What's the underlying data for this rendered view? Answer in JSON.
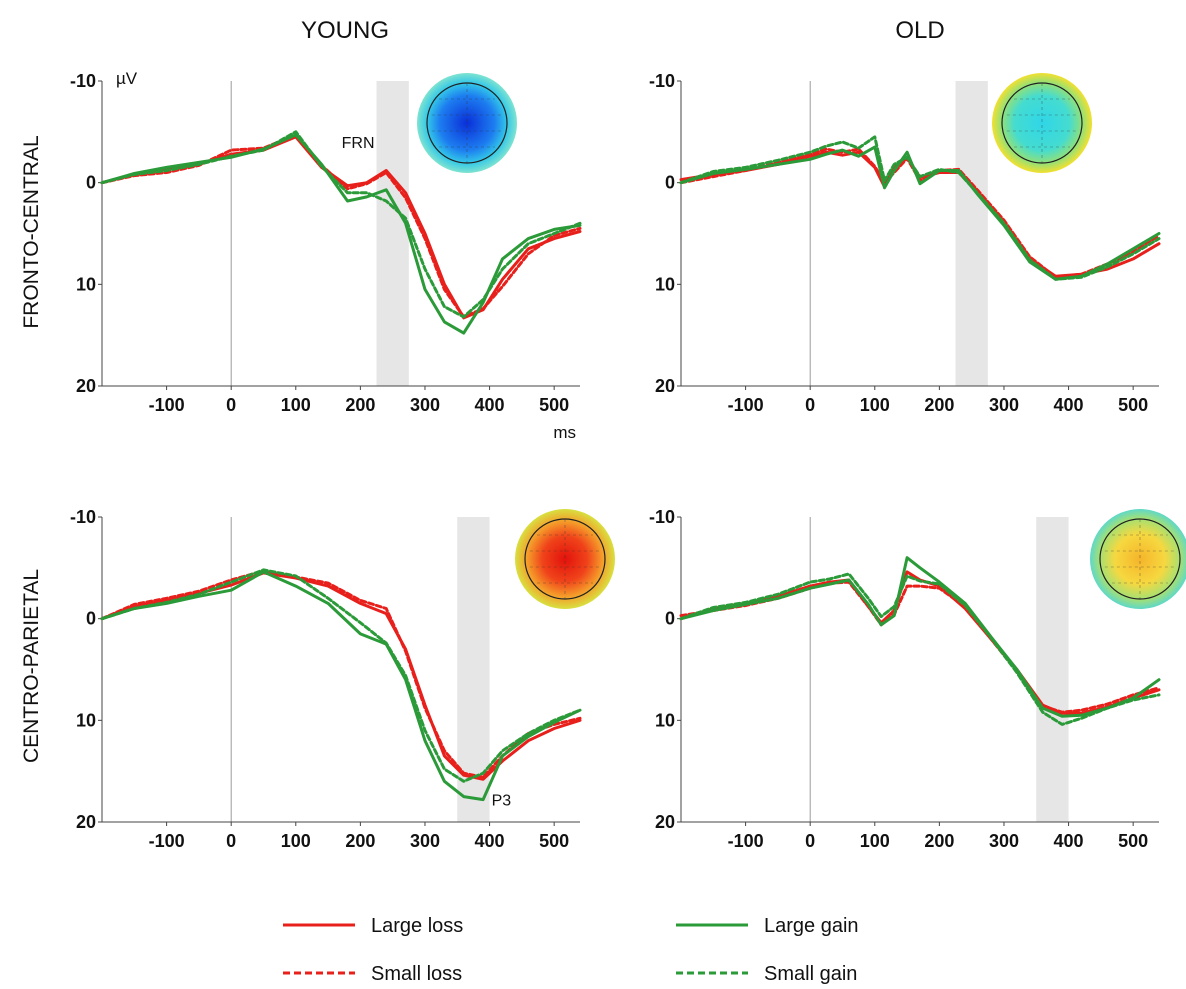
{
  "figure": {
    "columns": [
      "YOUNG",
      "OLD"
    ],
    "rows": [
      "FRONTO-CENTRAL",
      "CENTRO-PARIETAL"
    ],
    "y_unit": "µV",
    "x_unit": "ms"
  },
  "legend": [
    {
      "label": "Large loss",
      "color": "#e8201c",
      "dash": "solid"
    },
    {
      "label": "Small loss",
      "color": "#e8201c",
      "dash": "dashed"
    },
    {
      "label": "Large gain",
      "color": "#2b9a38",
      "dash": "solid"
    },
    {
      "label": "Small gain",
      "color": "#2b9a38",
      "dash": "dashed"
    }
  ],
  "chart_data": [
    {
      "type": "line",
      "group": "YOUNG",
      "region": "FRONTO-CENTRAL",
      "xlim": [
        -200,
        540
      ],
      "ylim": [
        -10,
        20
      ],
      "y_inverted": true,
      "xticks": [
        -100,
        0,
        100,
        200,
        300,
        400,
        500
      ],
      "yticks": [
        -10,
        0,
        10,
        20
      ],
      "window": [
        225,
        275
      ],
      "window_label": "FRN",
      "topomap": "blue",
      "series": [
        {
          "name": "Large loss",
          "x": [
            -200,
            -150,
            -100,
            -50,
            0,
            50,
            100,
            140,
            180,
            210,
            240,
            270,
            300,
            330,
            360,
            390,
            420,
            460,
            500,
            540
          ],
          "y": [
            0,
            -0.8,
            -1.3,
            -1.8,
            -2.8,
            -3.2,
            -4.5,
            -1.5,
            0.3,
            0,
            -1.2,
            1,
            5,
            10,
            13.3,
            12.5,
            9.5,
            6.5,
            5.5,
            4.8
          ]
        },
        {
          "name": "Small loss",
          "x": [
            -200,
            -150,
            -100,
            -50,
            0,
            50,
            100,
            140,
            180,
            210,
            240,
            270,
            300,
            330,
            360,
            390,
            420,
            460,
            500,
            540
          ],
          "y": [
            0,
            -0.7,
            -1,
            -1.7,
            -3.2,
            -3.4,
            -4.7,
            -1.7,
            0.6,
            0.1,
            -1,
            1.5,
            5.5,
            10.5,
            13.2,
            12.4,
            10.2,
            7,
            5.2,
            4.5
          ]
        },
        {
          "name": "Large gain",
          "x": [
            -200,
            -150,
            -100,
            -50,
            0,
            50,
            100,
            140,
            180,
            210,
            240,
            270,
            300,
            330,
            360,
            390,
            420,
            460,
            500,
            540
          ],
          "y": [
            0,
            -0.9,
            -1.5,
            -2,
            -2.5,
            -3.3,
            -4.7,
            -1.8,
            1.8,
            1.4,
            0.7,
            4,
            10.5,
            13.7,
            14.8,
            11.8,
            7.5,
            5.5,
            4.6,
            4.2
          ]
        },
        {
          "name": "Small gain",
          "x": [
            -200,
            -150,
            -100,
            -50,
            0,
            50,
            100,
            140,
            180,
            210,
            240,
            270,
            300,
            330,
            360,
            390,
            420,
            460,
            500,
            540
          ],
          "y": [
            0,
            -0.8,
            -1.2,
            -1.8,
            -2.6,
            -3.2,
            -5,
            -1.6,
            1,
            1,
            1.8,
            3.5,
            8.5,
            12.2,
            13.2,
            11.5,
            8.5,
            6,
            5,
            4
          ]
        }
      ]
    },
    {
      "type": "line",
      "group": "OLD",
      "region": "FRONTO-CENTRAL",
      "xlim": [
        -200,
        540
      ],
      "ylim": [
        -10,
        20
      ],
      "y_inverted": true,
      "xticks": [
        -100,
        0,
        100,
        200,
        300,
        400,
        500
      ],
      "yticks": [
        -10,
        0,
        10,
        20
      ],
      "window": [
        225,
        275
      ],
      "topomap": "cyan",
      "series": [
        {
          "name": "Large loss",
          "x": [
            -200,
            -150,
            -100,
            -50,
            0,
            25,
            50,
            75,
            100,
            115,
            130,
            150,
            170,
            200,
            230,
            260,
            300,
            340,
            380,
            420,
            460,
            500,
            540
          ],
          "y": [
            -0.3,
            -0.8,
            -1.2,
            -1.8,
            -2.6,
            -3,
            -2.7,
            -3,
            -1.5,
            0.4,
            -1.5,
            -2.5,
            -0.5,
            -1,
            -1,
            1,
            4,
            7.5,
            9.2,
            9,
            8.5,
            7.5,
            6
          ]
        },
        {
          "name": "Small loss",
          "x": [
            -200,
            -150,
            -100,
            -50,
            0,
            25,
            50,
            75,
            100,
            115,
            130,
            150,
            170,
            200,
            230,
            260,
            300,
            340,
            380,
            420,
            460,
            500,
            540
          ],
          "y": [
            0,
            -0.6,
            -1.2,
            -2,
            -2.8,
            -3.3,
            -3,
            -3.3,
            -1.6,
            0,
            -1,
            -2.4,
            -0.2,
            -1.2,
            -1.3,
            0.8,
            3.7,
            7.3,
            9.3,
            9,
            8,
            6.8,
            5.2
          ]
        },
        {
          "name": "Large gain",
          "x": [
            -200,
            -150,
            -100,
            -50,
            0,
            25,
            50,
            75,
            100,
            115,
            130,
            150,
            170,
            200,
            230,
            260,
            300,
            340,
            380,
            420,
            460,
            500,
            540
          ],
          "y": [
            0,
            -0.9,
            -1.3,
            -1.8,
            -2.3,
            -2.8,
            -3.2,
            -2.6,
            -3.5,
            0.5,
            -1.2,
            -3,
            0.1,
            -1.2,
            -1.2,
            1.2,
            4.2,
            7.8,
            9.5,
            9.2,
            8,
            6.5,
            5
          ]
        },
        {
          "name": "Small gain",
          "x": [
            -200,
            -150,
            -100,
            -50,
            0,
            25,
            50,
            75,
            100,
            115,
            130,
            150,
            170,
            200,
            230,
            260,
            300,
            340,
            380,
            420,
            460,
            500,
            540
          ],
          "y": [
            0,
            -1.1,
            -1.5,
            -2.2,
            -3,
            -3.6,
            -4,
            -3.4,
            -4.5,
            -0.2,
            -1.8,
            -2.5,
            -0.6,
            -1.3,
            -1,
            1.1,
            4,
            7.6,
            9.5,
            9.3,
            8.3,
            7,
            5.5
          ]
        }
      ]
    },
    {
      "type": "line",
      "group": "YOUNG",
      "region": "CENTRO-PARIETAL",
      "xlim": [
        -200,
        540
      ],
      "ylim": [
        -10,
        20
      ],
      "y_inverted": true,
      "xticks": [
        -100,
        0,
        100,
        200,
        300,
        400,
        500
      ],
      "yticks": [
        -10,
        0,
        10,
        20
      ],
      "window": [
        350,
        400
      ],
      "window_label": "P3",
      "topomap": "red",
      "series": [
        {
          "name": "Large loss",
          "x": [
            -200,
            -150,
            -100,
            -50,
            0,
            50,
            100,
            150,
            200,
            240,
            270,
            300,
            330,
            360,
            390,
            420,
            460,
            500,
            540
          ],
          "y": [
            0,
            -1.2,
            -1.8,
            -2.5,
            -3.3,
            -4.5,
            -4,
            -3.2,
            -1.5,
            -0.5,
            3,
            8.5,
            13.5,
            15.4,
            15.8,
            14,
            12,
            10.8,
            10
          ]
        },
        {
          "name": "Small loss",
          "x": [
            -200,
            -150,
            -100,
            -50,
            0,
            50,
            100,
            150,
            200,
            240,
            270,
            300,
            330,
            360,
            390,
            420,
            460,
            500,
            540
          ],
          "y": [
            0,
            -1.4,
            -2,
            -2.7,
            -3.8,
            -4.7,
            -4.1,
            -3.5,
            -1.8,
            -1,
            3.2,
            8.8,
            13,
            15.2,
            15.6,
            13.5,
            11.3,
            10.4,
            9.8
          ]
        },
        {
          "name": "Large gain",
          "x": [
            -200,
            -150,
            -100,
            -50,
            0,
            50,
            100,
            150,
            200,
            240,
            270,
            300,
            330,
            360,
            390,
            420,
            460,
            500,
            540
          ],
          "y": [
            0,
            -1,
            -1.5,
            -2.2,
            -2.8,
            -4.6,
            -3.2,
            -1.5,
            1.5,
            2.5,
            6,
            12,
            16,
            17.5,
            17.8,
            13.5,
            11.6,
            10.2,
            9
          ]
        },
        {
          "name": "Small gain",
          "x": [
            -200,
            -150,
            -100,
            -50,
            0,
            50,
            100,
            150,
            200,
            240,
            270,
            300,
            330,
            360,
            390,
            420,
            460,
            500,
            540
          ],
          "y": [
            0,
            -1,
            -1.6,
            -2.4,
            -3.6,
            -4.8,
            -4.2,
            -2,
            0.4,
            2.4,
            5.6,
            11,
            14.8,
            16,
            15.2,
            13,
            11.3,
            10,
            9
          ]
        }
      ]
    },
    {
      "type": "line",
      "group": "OLD",
      "region": "CENTRO-PARIETAL",
      "xlim": [
        -200,
        540
      ],
      "ylim": [
        -10,
        20
      ],
      "y_inverted": true,
      "xticks": [
        -100,
        0,
        100,
        200,
        300,
        400,
        500
      ],
      "yticks": [
        -10,
        0,
        10,
        20
      ],
      "window": [
        350,
        400
      ],
      "topomap": "yellow",
      "series": [
        {
          "name": "Large loss",
          "x": [
            -200,
            -150,
            -100,
            -50,
            0,
            30,
            60,
            90,
            110,
            130,
            150,
            170,
            200,
            240,
            280,
            320,
            360,
            390,
            420,
            460,
            500,
            540
          ],
          "y": [
            0,
            -1,
            -1.5,
            -2.2,
            -3.2,
            -3.6,
            -3.8,
            -1.2,
            0.4,
            -0.8,
            -4.6,
            -3.8,
            -3.2,
            -1,
            2,
            5,
            8.5,
            9.3,
            9.3,
            8.7,
            7.8,
            7
          ]
        },
        {
          "name": "Small loss",
          "x": [
            -200,
            -150,
            -100,
            -50,
            0,
            30,
            60,
            90,
            110,
            130,
            150,
            170,
            200,
            240,
            280,
            320,
            360,
            390,
            420,
            460,
            500,
            540
          ],
          "y": [
            -0.3,
            -0.8,
            -1.3,
            -2,
            -3,
            -3.5,
            -3.6,
            -1.2,
            0.6,
            -0.4,
            -3.2,
            -3.2,
            -3,
            -1.2,
            2,
            5.2,
            8.6,
            9.2,
            9,
            8.4,
            7.5,
            6.8
          ]
        },
        {
          "name": "Large gain",
          "x": [
            -200,
            -150,
            -100,
            -50,
            0,
            30,
            60,
            90,
            110,
            130,
            150,
            170,
            200,
            240,
            280,
            320,
            360,
            390,
            420,
            460,
            500,
            540
          ],
          "y": [
            0,
            -0.8,
            -1.4,
            -2,
            -3,
            -3.4,
            -3.8,
            -1.4,
            0.6,
            -0.3,
            -6,
            -5,
            -3.6,
            -1.5,
            1.8,
            5,
            8.8,
            9.6,
            9.5,
            8.8,
            7.8,
            6
          ]
        },
        {
          "name": "Small gain",
          "x": [
            -200,
            -150,
            -100,
            -50,
            0,
            30,
            60,
            90,
            110,
            130,
            150,
            170,
            200,
            240,
            280,
            320,
            360,
            390,
            420,
            460,
            500,
            540
          ],
          "y": [
            0,
            -1.1,
            -1.6,
            -2.4,
            -3.6,
            -3.9,
            -4.4,
            -2,
            -0.2,
            -1.2,
            -4.2,
            -3.7,
            -3.4,
            -1.3,
            1.9,
            5.3,
            9.2,
            10.4,
            9.8,
            8.8,
            8,
            7.5
          ]
        }
      ]
    }
  ]
}
